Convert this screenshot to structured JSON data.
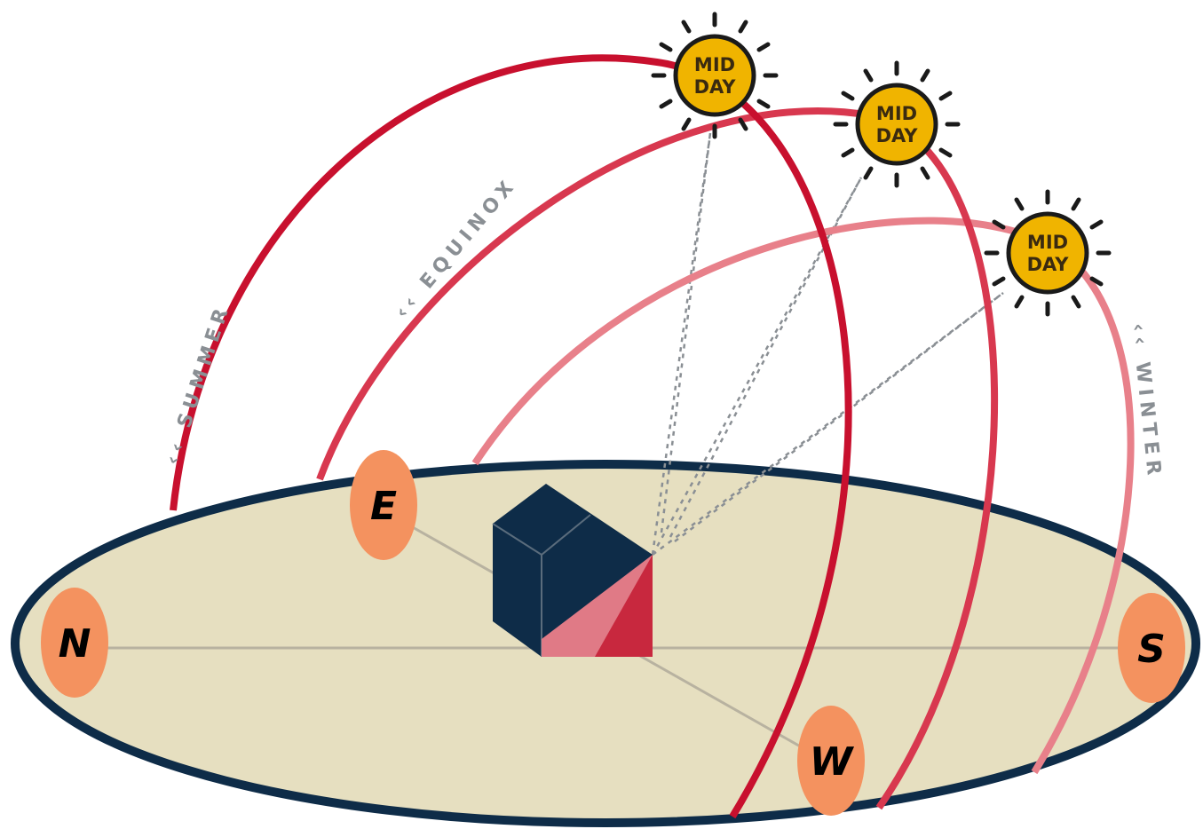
{
  "paths": {
    "summer_label": "‹‹ SUMMER",
    "equinox_label": "‹‹ EQUINOX",
    "winter_label": "‹‹ WINTER",
    "colors": {
      "summer": "#c8102e",
      "equinox": "#d8384f",
      "winter": "#e8808a"
    }
  },
  "suns": {
    "summer": {
      "line1": "MID",
      "line2": "DAY"
    },
    "equinox": {
      "line1": "MID",
      "line2": "DAY"
    },
    "winter": {
      "line1": "MID",
      "line2": "DAY"
    },
    "fill_color": "#f0b400"
  },
  "compass": {
    "north": "N",
    "east": "E",
    "south": "S",
    "west": "W",
    "marker_color": "#f4925f"
  },
  "ground": {
    "fill_color": "#e6dfc0",
    "outline_color": "#0e2c48"
  },
  "house": {
    "body_color": "#0e2c48",
    "shadow_color": "#e07a86",
    "shadow_dark_color": "#c8283e"
  }
}
